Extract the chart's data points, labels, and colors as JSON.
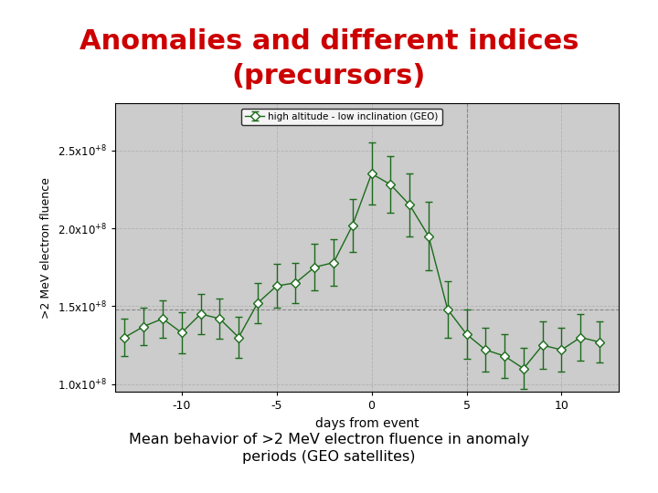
{
  "title_line1": "Anomalies and different indices",
  "title_line2": "(precursors)",
  "title_color": "#cc0000",
  "title_fontsize": 22,
  "subtitle_text": "Mean behavior of >2 MeV electron fluence in anomaly\nperiods (GEO satellites)",
  "subtitle_bg": "#b8dde8",
  "xlabel": "days from event",
  "ylabel": ">2 MeV electron fluence",
  "legend_label": "high altitude - low inclination (GEO)",
  "line_color": "#1a6b1a",
  "marker_color": "#1a6b1a",
  "plot_bg": "#cccccc",
  "x": [
    -13,
    -12,
    -11,
    -10,
    -9,
    -8,
    -7,
    -6,
    -5,
    -4,
    -3,
    -2,
    -1,
    0,
    1,
    2,
    3,
    4,
    5,
    6,
    7,
    8,
    9,
    10,
    11,
    12
  ],
  "y": [
    130000000.0,
    137000000.0,
    142000000.0,
    133000000.0,
    145000000.0,
    142000000.0,
    130000000.0,
    152000000.0,
    163000000.0,
    165000000.0,
    175000000.0,
    178000000.0,
    202000000.0,
    235000000.0,
    228000000.0,
    215000000.0,
    195000000.0,
    148000000.0,
    132000000.0,
    122000000.0,
    118000000.0,
    110000000.0,
    125000000.0,
    122000000.0,
    130000000.0,
    127000000.0
  ],
  "yerr": [
    12000000.0,
    12000000.0,
    12000000.0,
    13000000.0,
    13000000.0,
    13000000.0,
    13000000.0,
    13000000.0,
    14000000.0,
    13000000.0,
    15000000.0,
    15000000.0,
    17000000.0,
    20000000.0,
    18000000.0,
    20000000.0,
    22000000.0,
    18000000.0,
    16000000.0,
    14000000.0,
    14000000.0,
    13000000.0,
    15000000.0,
    14000000.0,
    15000000.0,
    13000000.0
  ],
  "xlim": [
    -13.5,
    13.0
  ],
  "ylim": [
    95000000.0,
    280000000.0
  ],
  "yticks": [
    100000000.0,
    150000000.0,
    200000000.0,
    250000000.0
  ],
  "xticks": [
    -10,
    -5,
    0,
    5,
    10
  ],
  "vline_x": 5,
  "hline_y": 148000000.0,
  "grid_color": "#999999",
  "font_family": "DejaVu Sans"
}
